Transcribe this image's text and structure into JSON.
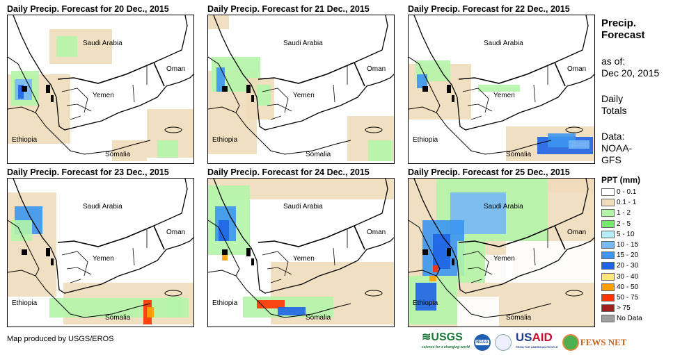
{
  "panels": [
    {
      "title": "Daily Precip. Forecast for 20 Dec., 2015"
    },
    {
      "title": "Daily Precip. Forecast for 21 Dec., 2015"
    },
    {
      "title": "Daily Precip. Forecast for 22 Dec., 2015"
    },
    {
      "title": "Daily Precip. Forecast for 23 Dec., 2015"
    },
    {
      "title": "Daily Precip. Forecast for 24 Dec., 2015"
    },
    {
      "title": "Daily Precip. Forecast for 25 Dec., 2015"
    }
  ],
  "map_labels": {
    "saudi": "Saudi Arabia",
    "oman": "Oman",
    "yemen": "Yemen",
    "ethiopia": "Ethiopia",
    "somalia": "Somalia"
  },
  "side": {
    "title1": "Precip.",
    "title2": "Forecast",
    "asof": "as of:",
    "date": "Dec 20, 2015",
    "daily": "Daily",
    "totals": "Totals",
    "data": "Data:",
    "noaa": "NOAA-",
    "gfs": "GFS"
  },
  "legend": {
    "title": "PPT (mm)",
    "items": [
      {
        "label": "0 - 0.1",
        "color": "#ffffff"
      },
      {
        "label": "0.1 - 1",
        "color": "#f0dcba"
      },
      {
        "label": "1 - 2",
        "color": "#b4f5a8"
      },
      {
        "label": "2 - 5",
        "color": "#74eb6a"
      },
      {
        "label": "5 - 10",
        "color": "#b4ecf8"
      },
      {
        "label": "10 - 15",
        "color": "#78b8f5"
      },
      {
        "label": "15 - 20",
        "color": "#3c96f0"
      },
      {
        "label": "20 - 30",
        "color": "#1e64e6"
      },
      {
        "label": "30 - 40",
        "color": "#ffe678"
      },
      {
        "label": "40 - 50",
        "color": "#ffa000"
      },
      {
        "label": "50 - 75",
        "color": "#ff3200"
      },
      {
        "label": "> 75",
        "color": "#a01e1e"
      },
      {
        "label": "No Data",
        "color": "#a0a0a0"
      }
    ]
  },
  "credit": "Map produced by USGS/EROS",
  "logos": {
    "usgs": "USGS",
    "usgs_tag": "science for a changing world",
    "noaa": "NOAA",
    "usaid": "USAID",
    "usaid_tag": "FROM THE AMERICAN PEOPLE",
    "fews": "FEWS NET"
  }
}
